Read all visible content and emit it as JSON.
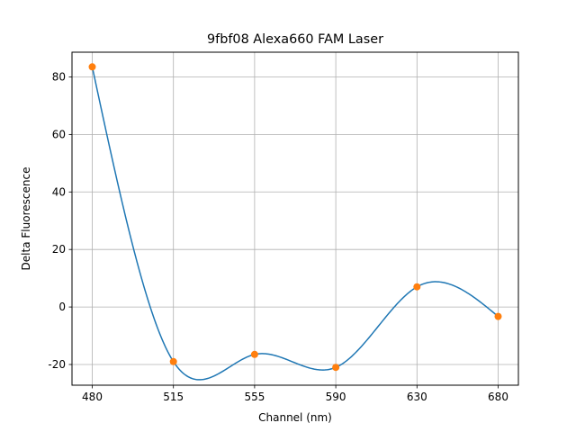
{
  "chart_data": {
    "type": "line",
    "title": "9fbf08 Alexa660 FAM Laser",
    "xlabel": "Channel (nm)",
    "ylabel": "Delta Fluorescence",
    "categories": [
      "480",
      "515",
      "555",
      "590",
      "630",
      "680"
    ],
    "values": [
      83.5,
      -19.0,
      -16.5,
      -21.0,
      7.0,
      -3.3
    ],
    "ylim": [
      -27.2,
      88.6
    ],
    "yticks": [
      -20,
      0,
      20,
      40,
      60,
      80
    ],
    "grid": true,
    "series": [
      {
        "name": "",
        "style": "interpolated-curve",
        "color": "#1f77b4"
      },
      {
        "name": "",
        "style": "markers",
        "color": "#ff7f0e"
      }
    ]
  }
}
